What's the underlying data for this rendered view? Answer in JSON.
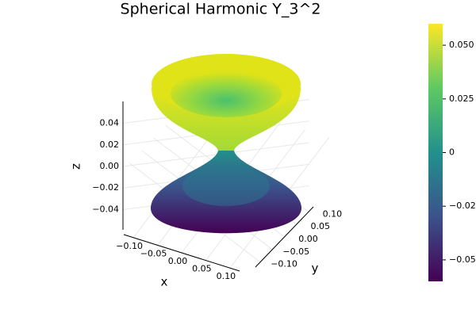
{
  "chart_data": {
    "type": "surface3d",
    "title": "Spherical Harmonic Y_3^2",
    "xlabel": "x",
    "ylabel": "y",
    "zlabel": "z",
    "xlim": [
      -0.12,
      0.12
    ],
    "xticks": [
      {
        "value": -0.1,
        "label": "−0.10"
      },
      {
        "value": -0.05,
        "label": "−0.05"
      },
      {
        "value": 0,
        "label": "0.00"
      },
      0.05,
      {
        "value": 0.1,
        "label": "0.10"
      }
    ],
    "ylim": [
      -0.12,
      0.12
    ],
    "yticks": [
      {
        "value": -0.1,
        "label": "−0.10"
      },
      {
        "value": -0.05,
        "label": "−0.05"
      },
      {
        "value": 0,
        "label": "0.00"
      },
      0.05,
      {
        "value": 0.1,
        "label": "0.10"
      }
    ],
    "zlim": [
      -0.058,
      0.058
    ],
    "zticks": [
      0.04,
      0.02,
      {
        "value": 0,
        "label": "0.00"
      },
      {
        "value": -0.02,
        "label": "−0.02"
      },
      {
        "value": -0.04,
        "label": "−0.04"
      }
    ],
    "clim": [
      -0.06,
      0.06
    ],
    "cticks": [
      {
        "value": 0.05,
        "label": "0.050"
      },
      {
        "value": 0.025,
        "label": "0.025"
      },
      0,
      {
        "value": -0.025,
        "label": "−0.025"
      },
      {
        "value": -0.05,
        "label": "−0.050"
      }
    ],
    "colormap": [
      "#440154",
      "#3b528b",
      "#21918c",
      "#5ec962",
      "#fde725"
    ],
    "grid": true
  }
}
